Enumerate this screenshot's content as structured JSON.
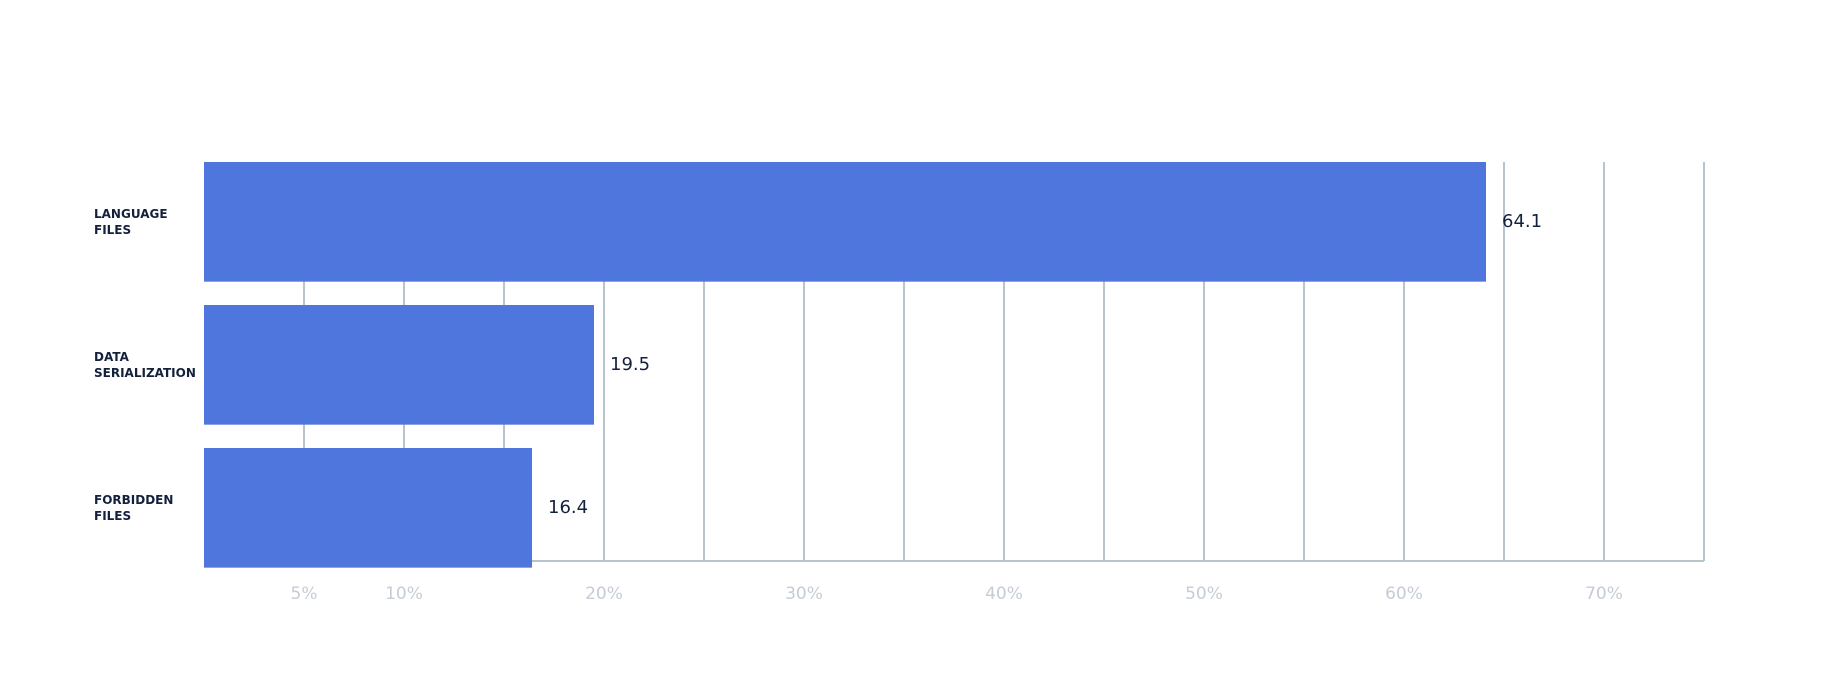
{
  "chart_data": {
    "type": "hbar",
    "categories": [
      "LANGUAGE FILES",
      "DATA SERIALIZATION",
      "FORBIDDEN FILES"
    ],
    "values": [
      64.1,
      19.5,
      16.4
    ],
    "color": "#4f76dd",
    "xlim": [
      0,
      75
    ],
    "xticks": [
      {
        "value": 5,
        "label": "5%"
      },
      {
        "value": 10,
        "label": "10%"
      },
      {
        "value": 20,
        "label": "20%"
      },
      {
        "value": 30,
        "label": "30%"
      },
      {
        "value": 40,
        "label": "40%"
      },
      {
        "value": 50,
        "label": "50%"
      },
      {
        "value": 60,
        "label": "60%"
      },
      {
        "value": 70,
        "label": "70%"
      }
    ],
    "minor_xticks": [
      15,
      25,
      35,
      45,
      55,
      65,
      75
    ],
    "grid": true
  }
}
